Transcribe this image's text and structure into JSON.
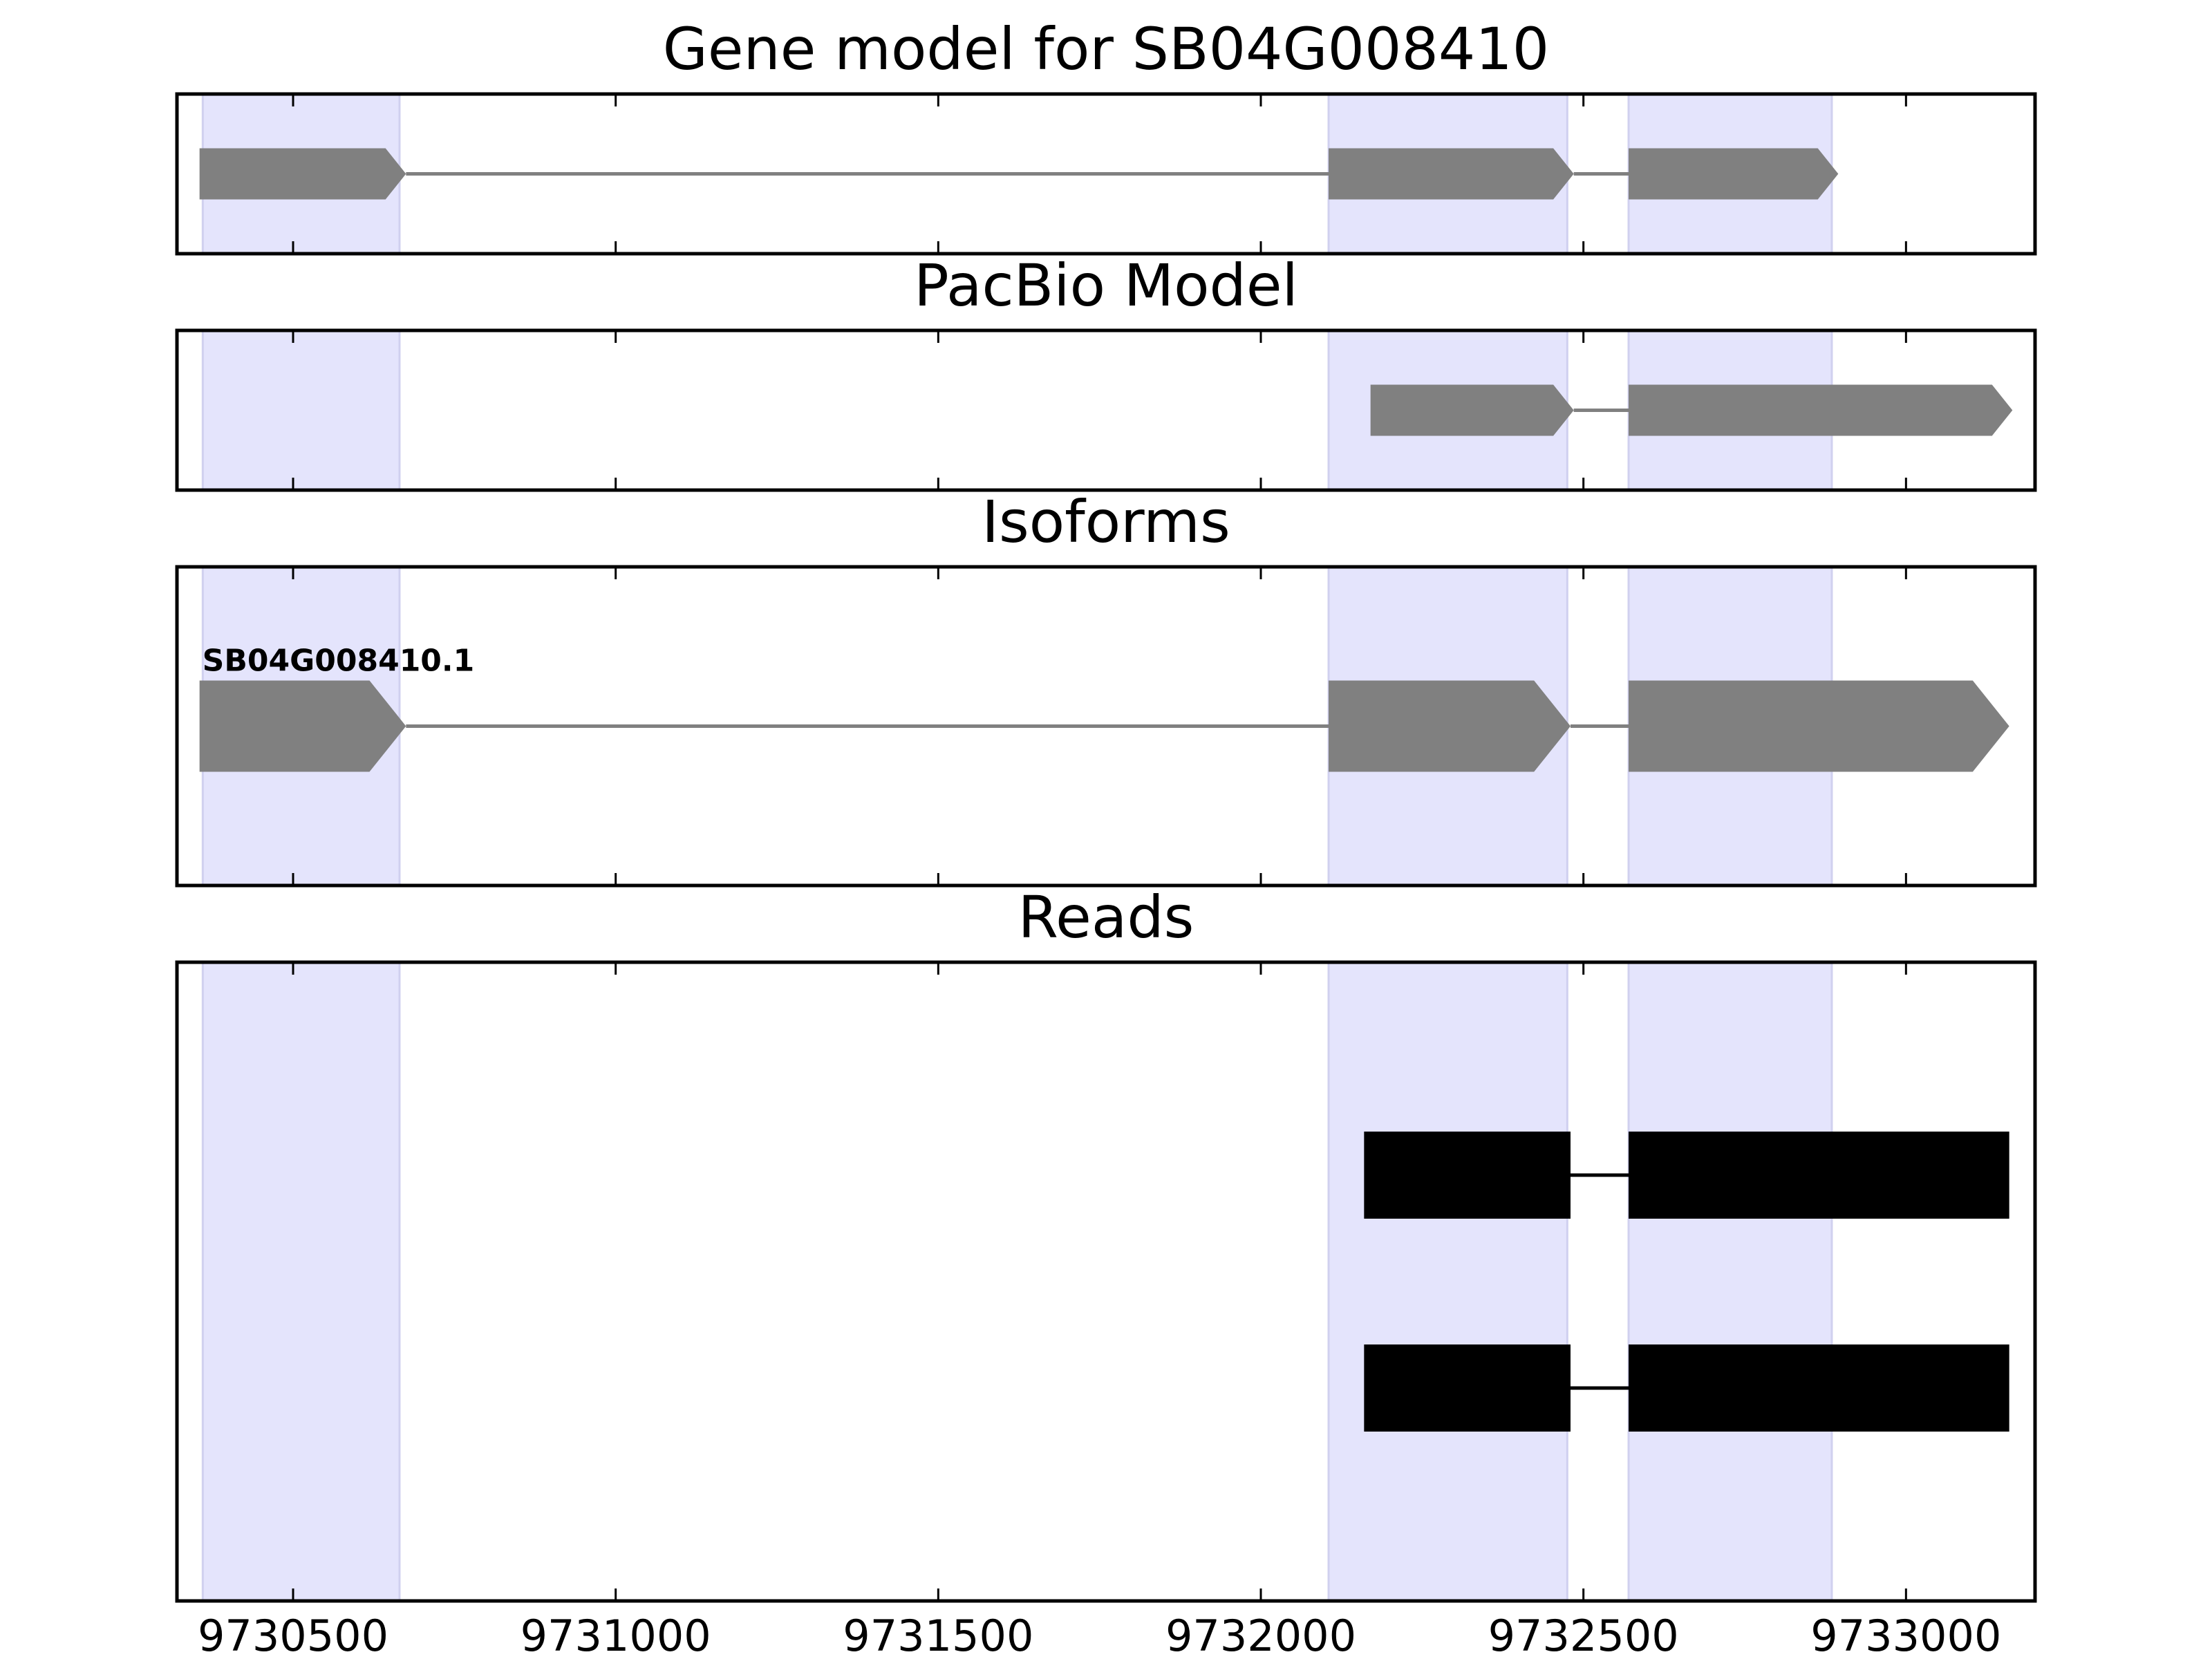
{
  "chart_data": {
    "type": "gene-track",
    "xlim": [
      9730320,
      9733200
    ],
    "x_ticks": [
      9730500,
      9731000,
      9731500,
      9732000,
      9732500,
      9733000
    ],
    "highlight_regions": [
      [
        9730360,
        9730665
      ],
      [
        9732105,
        9732475
      ],
      [
        9732570,
        9732885
      ]
    ],
    "colors": {
      "highlight": "#e4e4fc",
      "highlight_edge": "#d0d0ef",
      "model": "#808080",
      "read": "#000000",
      "frame": "#000000"
    },
    "panels": [
      {
        "title": "Gene model for SB04G008410",
        "kind": "arrow",
        "tracks": [
          {
            "label": "",
            "exons": [
              [
                9730355,
                9730675
              ],
              [
                9732105,
                9732485
              ],
              [
                9732570,
                9732895
              ]
            ]
          }
        ]
      },
      {
        "title": "PacBio Model",
        "kind": "arrow",
        "tracks": [
          {
            "label": "",
            "exons": [
              [
                9732170,
                9732485
              ],
              [
                9732570,
                9733165
              ]
            ]
          }
        ]
      },
      {
        "title": "Isoforms",
        "kind": "arrow",
        "tracks": [
          {
            "label": "SB04G008410.1",
            "exons": [
              [
                9730355,
                9730675
              ],
              [
                9732105,
                9732480
              ],
              [
                9732570,
                9733160
              ]
            ]
          }
        ]
      },
      {
        "title": "Reads",
        "kind": "block",
        "tracks": [
          {
            "label": "",
            "exons": [
              [
                9732160,
                9732480
              ],
              [
                9732570,
                9733160
              ]
            ]
          },
          {
            "label": "",
            "exons": [
              [
                9732160,
                9732480
              ],
              [
                9732570,
                9733160
              ]
            ]
          }
        ]
      }
    ]
  }
}
